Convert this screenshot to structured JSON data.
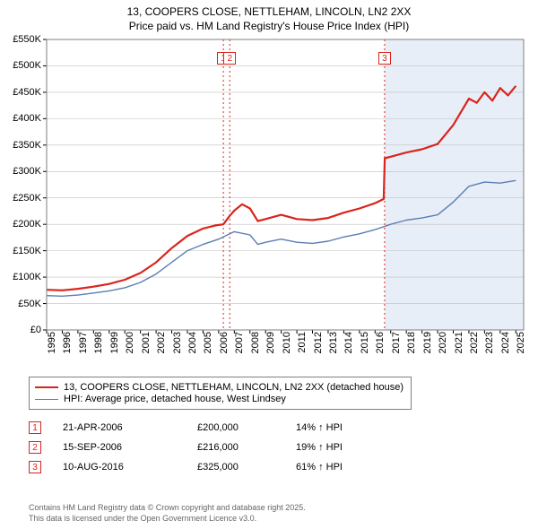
{
  "title_line1": "13, COOPERS CLOSE, NETTLEHAM, LINCOLN, LN2 2XX",
  "title_line2": "Price paid vs. HM Land Registry's House Price Index (HPI)",
  "chart": {
    "type": "line",
    "background_color": "#ffffff",
    "shaded_region": {
      "from_x": 2016.61,
      "color": "#e8eef7"
    },
    "grid_color": "#bfbfbf",
    "border_color": "#7f7f7f",
    "ylim": [
      0,
      550
    ],
    "ytick_step": 50,
    "y_unit_prefix": "£",
    "y_unit_suffix": "K",
    "xlim": [
      1995,
      2025.5
    ],
    "xticks": [
      1995,
      1996,
      1997,
      1998,
      1999,
      2000,
      2001,
      2002,
      2003,
      2004,
      2005,
      2006,
      2007,
      2008,
      2009,
      2010,
      2011,
      2012,
      2013,
      2014,
      2015,
      2016,
      2017,
      2018,
      2019,
      2020,
      2021,
      2022,
      2023,
      2024,
      2025
    ],
    "series": [
      {
        "name": "price_paid",
        "label": "13, COOPERS CLOSE, NETTLEHAM, LINCOLN, LN2 2XX (detached house)",
        "color": "#d9241c",
        "width": 2.2,
        "points": [
          [
            1995,
            76
          ],
          [
            1996,
            75
          ],
          [
            1997,
            78
          ],
          [
            1998,
            82
          ],
          [
            1999,
            87
          ],
          [
            2000,
            95
          ],
          [
            2001,
            108
          ],
          [
            2002,
            128
          ],
          [
            2003,
            155
          ],
          [
            2004,
            178
          ],
          [
            2005,
            192
          ],
          [
            2005.8,
            198
          ],
          [
            2006.3,
            200
          ],
          [
            2006.7,
            216
          ],
          [
            2007,
            226
          ],
          [
            2007.5,
            238
          ],
          [
            2008,
            230
          ],
          [
            2008.5,
            206
          ],
          [
            2009,
            210
          ],
          [
            2010,
            218
          ],
          [
            2011,
            210
          ],
          [
            2012,
            208
          ],
          [
            2013,
            212
          ],
          [
            2014,
            222
          ],
          [
            2015,
            230
          ],
          [
            2016,
            240
          ],
          [
            2016.55,
            248
          ],
          [
            2016.62,
            325
          ],
          [
            2017,
            328
          ],
          [
            2018,
            336
          ],
          [
            2019,
            342
          ],
          [
            2020,
            352
          ],
          [
            2021,
            388
          ],
          [
            2022,
            438
          ],
          [
            2022.5,
            430
          ],
          [
            2023,
            450
          ],
          [
            2023.5,
            434
          ],
          [
            2024,
            458
          ],
          [
            2024.5,
            444
          ],
          [
            2025,
            462
          ]
        ]
      },
      {
        "name": "hpi",
        "label": "HPI: Average price, detached house, West Lindsey",
        "color": "#5b7eb2",
        "width": 1.4,
        "points": [
          [
            1995,
            65
          ],
          [
            1996,
            64
          ],
          [
            1997,
            66
          ],
          [
            1998,
            70
          ],
          [
            1999,
            74
          ],
          [
            2000,
            80
          ],
          [
            2001,
            90
          ],
          [
            2002,
            106
          ],
          [
            2003,
            128
          ],
          [
            2004,
            150
          ],
          [
            2005,
            162
          ],
          [
            2006,
            172
          ],
          [
            2007,
            186
          ],
          [
            2008,
            180
          ],
          [
            2008.5,
            162
          ],
          [
            2009,
            166
          ],
          [
            2010,
            172
          ],
          [
            2011,
            166
          ],
          [
            2012,
            164
          ],
          [
            2013,
            168
          ],
          [
            2014,
            176
          ],
          [
            2015,
            182
          ],
          [
            2016,
            190
          ],
          [
            2017,
            200
          ],
          [
            2018,
            208
          ],
          [
            2019,
            212
          ],
          [
            2020,
            218
          ],
          [
            2021,
            242
          ],
          [
            2022,
            272
          ],
          [
            2023,
            280
          ],
          [
            2024,
            278
          ],
          [
            2025,
            283
          ]
        ]
      }
    ],
    "markers": [
      {
        "n": "1",
        "x": 2006.3,
        "color": "#d9241c"
      },
      {
        "n": "2",
        "x": 2006.71,
        "color": "#d9241c"
      },
      {
        "n": "3",
        "x": 2016.61,
        "color": "#d9241c"
      }
    ]
  },
  "legend": {
    "rows": [
      {
        "color": "#d9241c",
        "width": 2.2,
        "label": "13, COOPERS CLOSE, NETTLEHAM, LINCOLN, LN2 2XX (detached house)"
      },
      {
        "color": "#5b7eb2",
        "width": 1.4,
        "label": "HPI: Average price, detached house, West Lindsey"
      }
    ]
  },
  "events": [
    {
      "n": "1",
      "color": "#d9241c",
      "date": "21-APR-2006",
      "price": "£200,000",
      "hpi": "14% ↑ HPI"
    },
    {
      "n": "2",
      "color": "#d9241c",
      "date": "15-SEP-2006",
      "price": "£216,000",
      "hpi": "19% ↑ HPI"
    },
    {
      "n": "3",
      "color": "#d9241c",
      "date": "10-AUG-2016",
      "price": "£325,000",
      "hpi": "61% ↑ HPI"
    }
  ],
  "footer_line1": "Contains HM Land Registry data © Crown copyright and database right 2025.",
  "footer_line2": "This data is licensed under the Open Government Licence v3.0."
}
